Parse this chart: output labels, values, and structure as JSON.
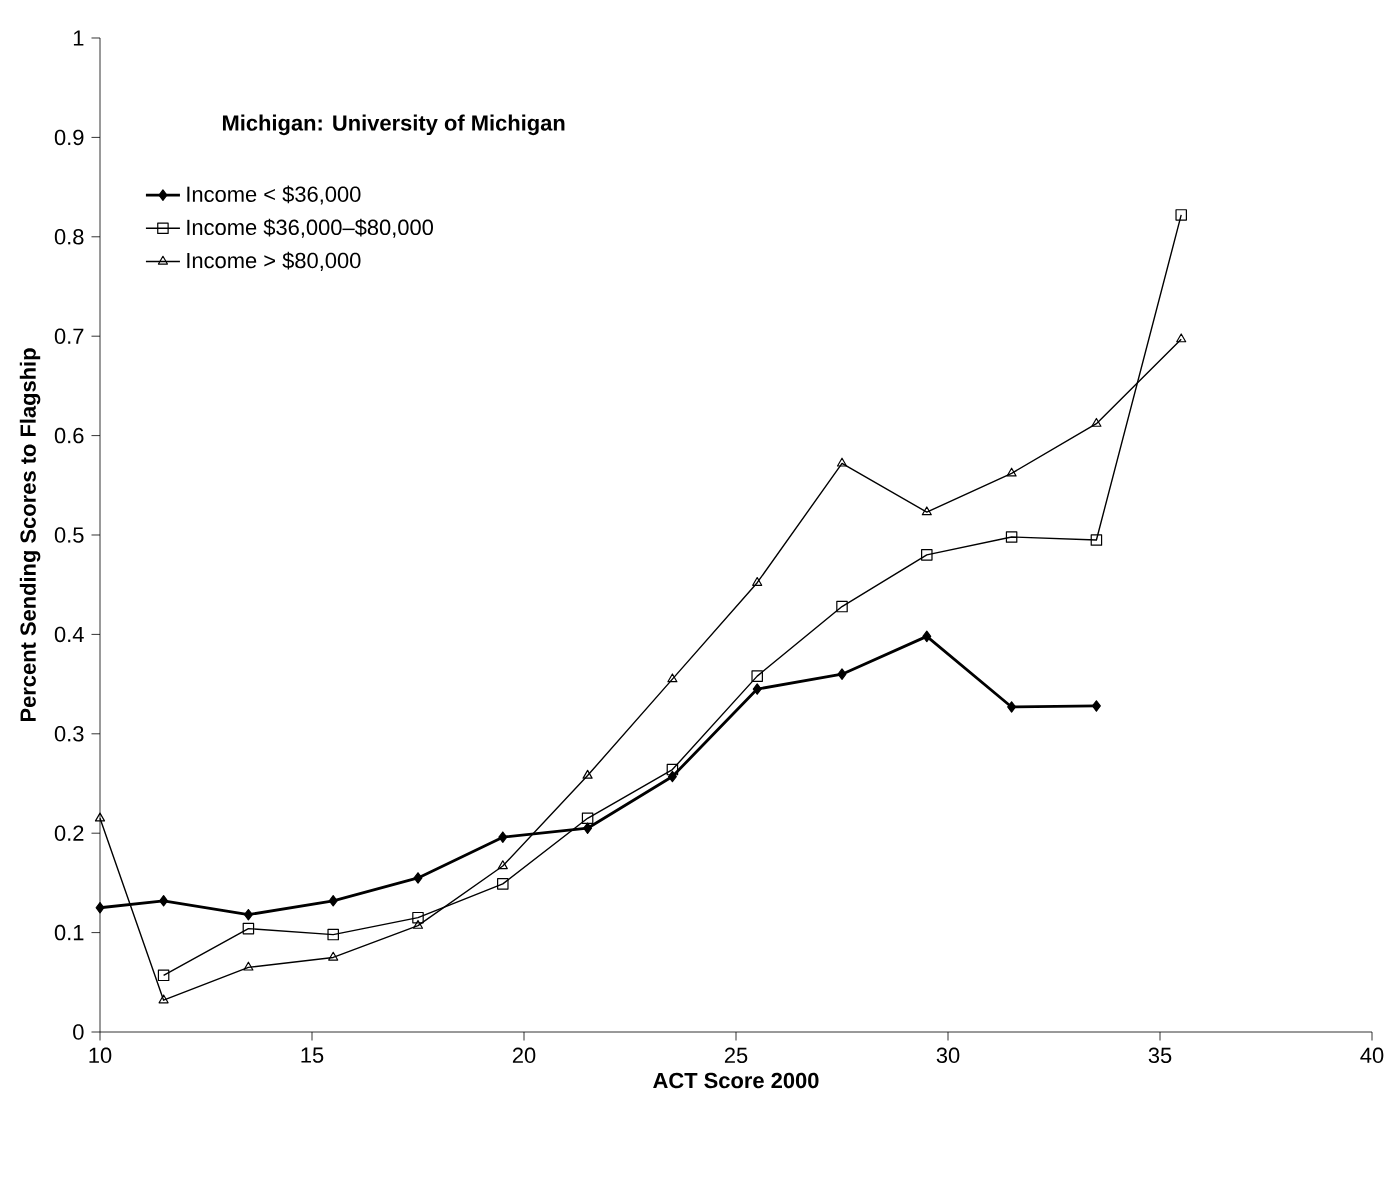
{
  "chart_data": {
    "type": "line",
    "title": "Michigan: University of Michigan",
    "xlabel": "ACT Score 2000",
    "ylabel": "Percent Sending Scores to Flagship",
    "xlim": [
      10,
      40
    ],
    "xticks": [
      10,
      15,
      20,
      25,
      30,
      35,
      40
    ],
    "ylim": [
      0,
      1
    ],
    "yticks": [
      0,
      0.1,
      0.2,
      0.3,
      0.4,
      0.5,
      0.6,
      0.7,
      0.8,
      0.9,
      1
    ],
    "grid": false,
    "legend": "top left",
    "series": [
      {
        "name": "Income < $36,000",
        "color": "#000000",
        "marker": "diamond",
        "x": [
          10,
          11.5,
          13.5,
          15.5,
          17.5,
          19.5,
          21.5,
          23.5,
          25.5,
          27.5,
          29.5,
          31.5,
          33.5
        ],
        "values": [
          0.125,
          0.132,
          0.118,
          0.132,
          0.155,
          0.196,
          0.205,
          0.257,
          0.345,
          0.36,
          0.398,
          0.327,
          0.328
        ]
      },
      {
        "name": "Income $36,000–$80,000",
        "color": "#000000",
        "marker": "square",
        "x": [
          11.5,
          13.5,
          15.5,
          17.5,
          19.5,
          21.5,
          23.5,
          25.5,
          27.5,
          29.5,
          31.5,
          33.5,
          35.5
        ],
        "values": [
          0.057,
          0.104,
          0.098,
          0.115,
          0.149,
          0.215,
          0.264,
          0.358,
          0.428,
          0.48,
          0.498,
          0.495,
          0.822
        ]
      },
      {
        "name": "Income > $80,000",
        "color": "#000000",
        "marker": "triangle",
        "x": [
          10,
          11.5,
          13.5,
          15.5,
          17.5,
          19.5,
          21.5,
          23.5,
          25.5,
          27.5,
          29.5,
          31.5,
          33.5,
          35.5
        ],
        "values": [
          0.215,
          0.032,
          0.065,
          0.075,
          0.107,
          0.167,
          0.258,
          0.355,
          0.452,
          0.572,
          0.523,
          0.562,
          0.612,
          0.697
        ]
      }
    ]
  }
}
